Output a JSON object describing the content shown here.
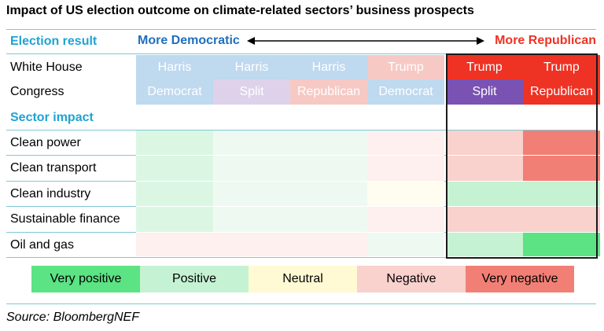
{
  "title": "Impact of US election outcome on climate-related sectors’ business prospects",
  "source": "Source: BloombergNEF",
  "headers": {
    "election_result": "Election result",
    "more_democratic": "More Democratic",
    "more_republican": "More Republican",
    "sector_impact": "Sector impact"
  },
  "colors": {
    "very_positive": "#5ce384",
    "positive": "#c5f2d2",
    "neutral": "#fffad3",
    "negative": "#f9d1cd",
    "very_negative": "#f27f75",
    "accent": "#1fa3d3",
    "democrat_text": "#1f6fbf",
    "republican_text": "#ee3224"
  },
  "chart_data": {
    "type": "table",
    "title": "Impact of US election outcome on climate-related sectors’ business prospects",
    "scenarios": [
      {
        "white_house": "Harris",
        "congress": "Democrat"
      },
      {
        "white_house": "Harris",
        "congress": "Split"
      },
      {
        "white_house": "Harris",
        "congress": "Republican"
      },
      {
        "white_house": "Trump",
        "congress": "Democrat"
      },
      {
        "white_house": "Trump",
        "congress": "Split"
      },
      {
        "white_house": "Trump",
        "congress": "Republican"
      }
    ],
    "row_labels": {
      "white_house": "White House",
      "congress": "Congress"
    },
    "sectors": [
      {
        "name": "Clean power",
        "impacts": [
          "Positive",
          "Positive",
          "Positive",
          "Negative",
          "Negative",
          "Very negative"
        ]
      },
      {
        "name": "Clean transport",
        "impacts": [
          "Positive",
          "Positive",
          "Positive",
          "Negative",
          "Negative",
          "Very negative"
        ]
      },
      {
        "name": "Clean industry",
        "impacts": [
          "Positive",
          "Positive",
          "Positive",
          "Neutral",
          "Positive",
          "Positive"
        ]
      },
      {
        "name": "Sustainable finance",
        "impacts": [
          "Positive",
          "Positive",
          "Positive",
          "Negative",
          "Negative",
          "Negative"
        ]
      },
      {
        "name": "Oil and gas",
        "impacts": [
          "Negative",
          "Negative",
          "Negative",
          "Positive",
          "Positive",
          "Very positive"
        ]
      }
    ],
    "highlighted_scenarios": [
      4,
      5
    ],
    "legend": [
      "Very positive",
      "Positive",
      "Neutral",
      "Negative",
      "Very negative"
    ]
  }
}
